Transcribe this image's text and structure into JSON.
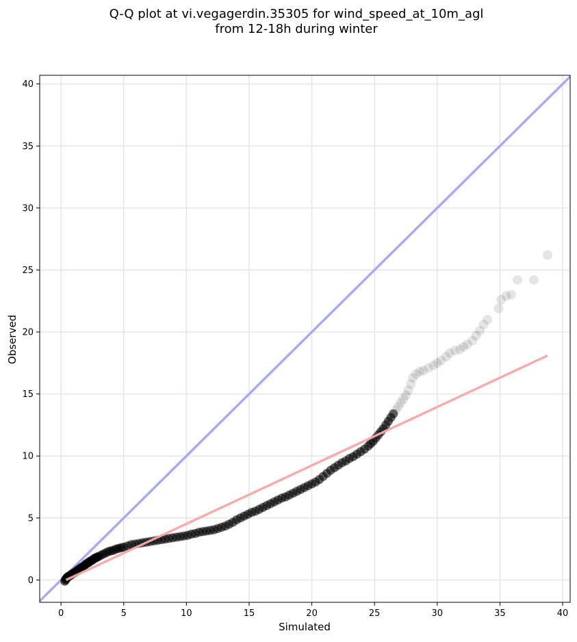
{
  "chart_data": {
    "type": "scatter",
    "title_lines": [
      "Q-Q plot at vi.vegagerdin.35305 for wind_speed_at_10m_agl",
      "from 12-18h during winter"
    ],
    "xlabel": "Simulated",
    "ylabel": "Observed",
    "xlim": [
      -1.7,
      40.6
    ],
    "ylim": [
      -1.8,
      40.7
    ],
    "xticks": [
      0,
      5,
      10,
      15,
      20,
      25,
      30,
      35,
      40
    ],
    "yticks": [
      0,
      5,
      10,
      15,
      20,
      25,
      30,
      35,
      40
    ],
    "xtick_labels": [
      "0",
      "5",
      "10",
      "15",
      "20",
      "25",
      "30",
      "35",
      "40"
    ],
    "ytick_labels": [
      "0",
      "5",
      "10",
      "15",
      "20",
      "25",
      "30",
      "35",
      "40"
    ],
    "grid": true,
    "identity_line": {
      "from": [
        -1.7,
        -1.7
      ],
      "to": [
        40.6,
        40.6
      ],
      "color": "#aaaaf2"
    },
    "fit_line": {
      "from": [
        0.4,
        0.0
      ],
      "to": [
        38.8,
        18.1
      ],
      "color": "#f6a8a8"
    },
    "marker_color": "#000000",
    "series": [
      {
        "points": [
          [
            0.3,
            -0.1
          ],
          [
            0.35,
            0.0
          ],
          [
            0.4,
            0.1
          ],
          [
            0.45,
            0.15
          ],
          [
            0.5,
            0.2
          ],
          [
            0.55,
            0.25
          ],
          [
            0.6,
            0.3
          ],
          [
            0.7,
            0.35
          ],
          [
            0.8,
            0.4
          ],
          [
            0.9,
            0.5
          ],
          [
            1.0,
            0.55
          ],
          [
            1.1,
            0.6
          ],
          [
            1.2,
            0.7
          ],
          [
            1.3,
            0.75
          ],
          [
            1.4,
            0.85
          ],
          [
            1.5,
            0.9
          ],
          [
            1.6,
            1.0
          ],
          [
            1.7,
            1.05
          ],
          [
            1.8,
            1.1
          ],
          [
            1.9,
            1.2
          ],
          [
            2.0,
            1.3
          ],
          [
            2.1,
            1.35
          ],
          [
            2.2,
            1.4
          ],
          [
            2.3,
            1.5
          ],
          [
            2.4,
            1.55
          ],
          [
            2.5,
            1.6
          ],
          [
            2.6,
            1.7
          ],
          [
            2.7,
            1.75
          ],
          [
            2.8,
            1.8
          ],
          [
            2.9,
            1.85
          ],
          [
            3.0,
            1.9
          ],
          [
            3.2,
            2.0
          ],
          [
            3.4,
            2.1
          ],
          [
            3.6,
            2.2
          ],
          [
            3.8,
            2.3
          ],
          [
            4.0,
            2.35
          ],
          [
            4.2,
            2.4
          ],
          [
            4.4,
            2.5
          ],
          [
            4.6,
            2.55
          ],
          [
            4.8,
            2.6
          ],
          [
            5.0,
            2.65
          ],
          [
            5.3,
            2.75
          ],
          [
            5.6,
            2.85
          ],
          [
            5.9,
            2.9
          ],
          [
            6.2,
            2.95
          ],
          [
            6.5,
            3.0
          ],
          [
            6.8,
            3.05
          ],
          [
            7.1,
            3.1
          ],
          [
            7.4,
            3.15
          ],
          [
            7.7,
            3.2
          ],
          [
            8.0,
            3.25
          ],
          [
            8.3,
            3.3
          ],
          [
            8.6,
            3.35
          ],
          [
            8.9,
            3.4
          ],
          [
            9.2,
            3.45
          ],
          [
            9.5,
            3.5
          ],
          [
            9.8,
            3.55
          ],
          [
            10.1,
            3.6
          ],
          [
            10.4,
            3.7
          ],
          [
            10.7,
            3.75
          ],
          [
            11.0,
            3.85
          ],
          [
            11.3,
            3.9
          ],
          [
            11.6,
            3.95
          ],
          [
            11.9,
            4.0
          ],
          [
            12.2,
            4.05
          ],
          [
            12.5,
            4.15
          ],
          [
            12.8,
            4.25
          ],
          [
            13.1,
            4.35
          ],
          [
            13.4,
            4.5
          ],
          [
            13.7,
            4.65
          ],
          [
            14.0,
            4.85
          ],
          [
            14.3,
            5.0
          ],
          [
            14.6,
            5.15
          ],
          [
            14.9,
            5.3
          ],
          [
            15.2,
            5.45
          ],
          [
            15.5,
            5.55
          ],
          [
            15.8,
            5.7
          ],
          [
            16.1,
            5.85
          ],
          [
            16.4,
            6.0
          ],
          [
            16.7,
            6.15
          ],
          [
            17.0,
            6.3
          ],
          [
            17.3,
            6.45
          ],
          [
            17.6,
            6.6
          ],
          [
            17.9,
            6.7
          ],
          [
            18.2,
            6.85
          ],
          [
            18.5,
            7.0
          ],
          [
            18.8,
            7.15
          ],
          [
            19.1,
            7.3
          ],
          [
            19.4,
            7.45
          ],
          [
            19.7,
            7.6
          ],
          [
            20.0,
            7.75
          ],
          [
            20.3,
            7.9
          ],
          [
            20.6,
            8.1
          ],
          [
            20.9,
            8.35
          ],
          [
            21.2,
            8.6
          ],
          [
            21.5,
            8.85
          ],
          [
            21.8,
            9.05
          ],
          [
            22.1,
            9.25
          ],
          [
            22.4,
            9.45
          ],
          [
            22.7,
            9.6
          ],
          [
            23.0,
            9.8
          ],
          [
            23.3,
            9.95
          ],
          [
            23.6,
            10.15
          ],
          [
            23.9,
            10.35
          ],
          [
            24.2,
            10.55
          ],
          [
            24.5,
            10.8
          ],
          [
            24.7,
            11.0
          ],
          [
            24.9,
            11.2
          ],
          [
            25.1,
            11.45
          ],
          [
            25.3,
            11.7
          ],
          [
            25.5,
            11.95
          ],
          [
            25.7,
            12.2
          ],
          [
            25.9,
            12.5
          ],
          [
            26.1,
            12.8
          ],
          [
            26.3,
            13.1
          ],
          [
            26.5,
            13.4
          ],
          [
            26.7,
            13.7
          ],
          [
            26.9,
            14.0
          ],
          [
            27.1,
            14.3
          ],
          [
            27.3,
            14.6
          ],
          [
            27.5,
            14.9
          ],
          [
            27.7,
            15.3
          ],
          [
            27.9,
            15.8
          ],
          [
            28.05,
            16.3
          ],
          [
            28.3,
            16.6
          ],
          [
            28.6,
            16.8
          ],
          [
            28.9,
            16.9
          ],
          [
            29.3,
            17.1
          ],
          [
            29.7,
            17.3
          ],
          [
            30.0,
            17.5
          ],
          [
            30.3,
            17.7
          ],
          [
            30.7,
            18.0
          ],
          [
            31.0,
            18.3
          ],
          [
            31.4,
            18.5
          ],
          [
            31.8,
            18.6
          ],
          [
            32.1,
            18.8
          ],
          [
            32.4,
            19.0
          ],
          [
            32.8,
            19.3
          ],
          [
            33.1,
            19.7
          ],
          [
            33.4,
            20.1
          ],
          [
            33.7,
            20.6
          ],
          [
            34.0,
            21.0
          ],
          [
            34.9,
            21.9
          ],
          [
            35.1,
            22.6
          ],
          [
            35.5,
            22.9
          ],
          [
            35.9,
            23.0
          ],
          [
            36.4,
            24.2
          ],
          [
            37.7,
            24.2
          ],
          [
            38.8,
            26.2
          ]
        ]
      }
    ]
  }
}
